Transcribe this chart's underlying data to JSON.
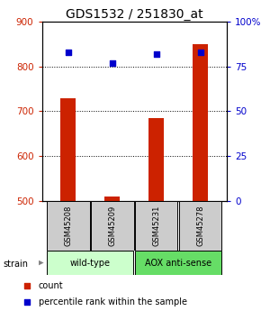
{
  "title": "GDS1532 / 251830_at",
  "samples": [
    "GSM45208",
    "GSM45209",
    "GSM45231",
    "GSM45278"
  ],
  "counts": [
    728,
    510,
    685,
    850
  ],
  "percentiles": [
    83,
    77,
    82,
    83
  ],
  "ylim_left": [
    500,
    900
  ],
  "ylim_right": [
    0,
    100
  ],
  "yticks_left": [
    500,
    600,
    700,
    800,
    900
  ],
  "yticks_right": [
    0,
    25,
    50,
    75,
    100
  ],
  "ytick_labels_right": [
    "0",
    "25",
    "50",
    "75",
    "100%"
  ],
  "bar_color": "#cc2200",
  "dot_color": "#0000cc",
  "groups": [
    {
      "label": "wild-type",
      "indices": [
        0,
        1
      ],
      "color": "#ccffcc"
    },
    {
      "label": "AOX anti-sense",
      "indices": [
        2,
        3
      ],
      "color": "#66dd66"
    }
  ],
  "strain_label": "strain",
  "legend_items": [
    {
      "color": "#cc2200",
      "label": "count"
    },
    {
      "color": "#0000cc",
      "label": "percentile rank within the sample"
    }
  ],
  "box_bg_color": "#cccccc",
  "title_fontsize": 10,
  "tick_fontsize": 7.5,
  "bar_width": 0.35
}
